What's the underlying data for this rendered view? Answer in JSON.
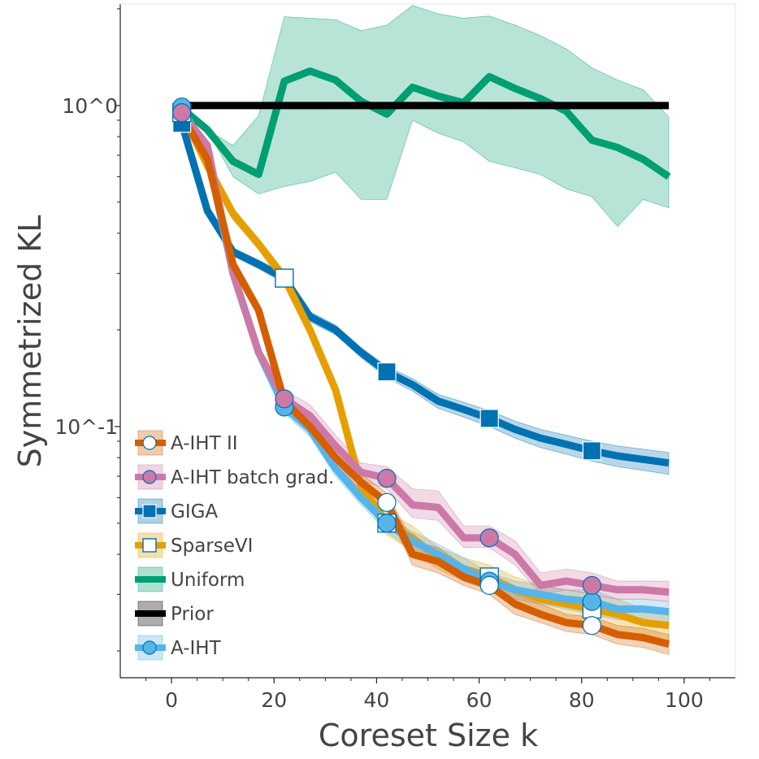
{
  "chart_data": {
    "type": "line",
    "xlabel": "Coreset Size k",
    "ylabel": "Symmetrized KL",
    "yscale": "log",
    "xlim": [
      -10,
      110
    ],
    "ylim": [
      0.0165,
      2.07
    ],
    "x_ticks": [
      0,
      20,
      40,
      60,
      80,
      100
    ],
    "y_ticks": [
      {
        "value": 1.0,
        "label": "10^0"
      },
      {
        "value": 0.1,
        "label": "10^-1"
      }
    ],
    "legend_location": "lower-left",
    "series": [
      {
        "name": "Uniform",
        "color": "#009E73",
        "marker": "none",
        "x": [
          2,
          7,
          12,
          17,
          22,
          27,
          32,
          37,
          42,
          47,
          52,
          57,
          62,
          67,
          72,
          77,
          82,
          87,
          92,
          97
        ],
        "y": [
          0.98,
          0.84,
          0.67,
          0.61,
          1.19,
          1.28,
          1.2,
          1.03,
          0.94,
          1.14,
          1.07,
          1.02,
          1.23,
          1.13,
          1.05,
          0.96,
          0.78,
          0.74,
          0.68,
          0.6
        ],
        "lower": [
          0.98,
          0.84,
          0.6,
          0.53,
          0.56,
          0.58,
          0.62,
          0.51,
          0.51,
          0.9,
          0.82,
          0.77,
          0.67,
          0.64,
          0.61,
          0.55,
          0.52,
          0.42,
          0.51,
          0.48
        ],
        "upper": [
          0.98,
          0.84,
          0.75,
          0.93,
          1.89,
          1.87,
          1.85,
          1.71,
          1.78,
          2.05,
          1.93,
          1.87,
          1.9,
          1.78,
          1.65,
          1.5,
          1.31,
          1.2,
          1.12,
          0.92
        ],
        "marker_x": []
      },
      {
        "name": "Prior",
        "color": "#000000",
        "marker": "none",
        "x": [
          2,
          97
        ],
        "y": [
          1.0,
          1.0
        ],
        "lower": [],
        "upper": [],
        "marker_x": []
      },
      {
        "name": "GIGA",
        "color": "#0072B2",
        "marker": "square",
        "x": [
          2,
          7,
          12,
          17,
          22,
          27,
          32,
          37,
          42,
          47,
          52,
          57,
          62,
          67,
          72,
          77,
          82,
          87,
          92,
          97
        ],
        "y": [
          0.88,
          0.47,
          0.35,
          0.32,
          0.29,
          0.22,
          0.2,
          0.17,
          0.148,
          0.135,
          0.12,
          0.113,
          0.106,
          0.098,
          0.092,
          0.088,
          0.084,
          0.081,
          0.079,
          0.077
        ],
        "lower": [
          0.86,
          0.46,
          0.34,
          0.31,
          0.28,
          0.212,
          0.193,
          0.164,
          0.142,
          0.129,
          0.114,
          0.107,
          0.1,
          0.092,
          0.086,
          0.082,
          0.078,
          0.075,
          0.073,
          0.071
        ],
        "upper": [
          0.9,
          0.48,
          0.36,
          0.33,
          0.3,
          0.228,
          0.207,
          0.176,
          0.154,
          0.141,
          0.126,
          0.119,
          0.112,
          0.104,
          0.098,
          0.094,
          0.09,
          0.087,
          0.085,
          0.083
        ],
        "marker_x": [
          2,
          42,
          62,
          82
        ]
      },
      {
        "name": "SparseVI",
        "color": "#E69F00",
        "marker": "open-square",
        "x": [
          2,
          7,
          12,
          17,
          22,
          27,
          32,
          37,
          42,
          47,
          52,
          57,
          62,
          67,
          72,
          77,
          82,
          87,
          92,
          97
        ],
        "y": [
          0.95,
          0.65,
          0.46,
          0.37,
          0.29,
          0.2,
          0.13,
          0.065,
          0.05,
          0.045,
          0.039,
          0.036,
          0.034,
          0.031,
          0.029,
          0.028,
          0.027,
          0.026,
          0.0245,
          0.024
        ],
        "lower": [
          0.94,
          0.64,
          0.44,
          0.355,
          0.275,
          0.19,
          0.123,
          0.061,
          0.046,
          0.041,
          0.036,
          0.033,
          0.031,
          0.028,
          0.026,
          0.025,
          0.024,
          0.023,
          0.022,
          0.021
        ],
        "upper": [
          0.96,
          0.66,
          0.48,
          0.385,
          0.305,
          0.21,
          0.137,
          0.069,
          0.054,
          0.049,
          0.042,
          0.039,
          0.037,
          0.034,
          0.032,
          0.031,
          0.03,
          0.029,
          0.027,
          0.027
        ],
        "marker_x": [
          2,
          22,
          42,
          62,
          82
        ]
      },
      {
        "name": "A-IHT",
        "color": "#56B4E9",
        "marker": "circle",
        "x": [
          2,
          7,
          12,
          17,
          22,
          27,
          32,
          37,
          42,
          47,
          52,
          57,
          62,
          67,
          72,
          77,
          82,
          87,
          92,
          97
        ],
        "y": [
          0.99,
          0.7,
          0.3,
          0.17,
          0.115,
          0.098,
          0.074,
          0.06,
          0.05,
          0.044,
          0.04,
          0.036,
          0.033,
          0.031,
          0.03,
          0.029,
          0.0285,
          0.027,
          0.027,
          0.0265
        ],
        "lower": [
          0.98,
          0.68,
          0.29,
          0.164,
          0.11,
          0.093,
          0.07,
          0.057,
          0.047,
          0.041,
          0.037,
          0.033,
          0.031,
          0.029,
          0.028,
          0.027,
          0.026,
          0.025,
          0.025,
          0.0245
        ],
        "upper": [
          1.0,
          0.72,
          0.31,
          0.176,
          0.12,
          0.103,
          0.078,
          0.063,
          0.053,
          0.047,
          0.043,
          0.039,
          0.035,
          0.033,
          0.032,
          0.031,
          0.031,
          0.029,
          0.029,
          0.0285
        ],
        "marker_x": [
          2,
          22,
          42,
          62,
          82
        ]
      },
      {
        "name": "A-IHT batch grad.",
        "color": "#CC79A7",
        "marker": "circle",
        "x": [
          2,
          7,
          12,
          17,
          22,
          27,
          32,
          37,
          42,
          47,
          52,
          57,
          62,
          67,
          72,
          77,
          82,
          87,
          92,
          97
        ],
        "y": [
          0.95,
          0.75,
          0.3,
          0.17,
          0.122,
          0.108,
          0.087,
          0.072,
          0.069,
          0.057,
          0.056,
          0.045,
          0.045,
          0.04,
          0.032,
          0.033,
          0.032,
          0.031,
          0.031,
          0.0305
        ],
        "lower": [
          0.94,
          0.73,
          0.29,
          0.164,
          0.116,
          0.102,
          0.082,
          0.068,
          0.064,
          0.052,
          0.051,
          0.042,
          0.042,
          0.037,
          0.03,
          0.031,
          0.03,
          0.029,
          0.029,
          0.0285
        ],
        "upper": [
          0.96,
          0.77,
          0.31,
          0.176,
          0.13,
          0.117,
          0.094,
          0.077,
          0.075,
          0.064,
          0.063,
          0.049,
          0.049,
          0.044,
          0.035,
          0.036,
          0.035,
          0.033,
          0.033,
          0.033
        ],
        "marker_x": [
          2,
          22,
          42,
          62,
          82
        ]
      },
      {
        "name": "A-IHT II",
        "color": "#D55E00",
        "marker": "open-circle",
        "x": [
          2,
          7,
          12,
          17,
          22,
          27,
          32,
          37,
          42,
          47,
          52,
          57,
          62,
          67,
          72,
          77,
          82,
          87,
          92,
          97
        ],
        "y": [
          0.93,
          0.68,
          0.32,
          0.23,
          0.12,
          0.1,
          0.08,
          0.067,
          0.058,
          0.04,
          0.038,
          0.034,
          0.032,
          0.028,
          0.026,
          0.0245,
          0.024,
          0.0225,
          0.022,
          0.021
        ],
        "lower": [
          0.92,
          0.66,
          0.31,
          0.22,
          0.114,
          0.095,
          0.076,
          0.063,
          0.055,
          0.037,
          0.035,
          0.032,
          0.03,
          0.026,
          0.0245,
          0.023,
          0.0225,
          0.021,
          0.0205,
          0.0195
        ],
        "upper": [
          0.94,
          0.7,
          0.33,
          0.24,
          0.126,
          0.105,
          0.085,
          0.071,
          0.062,
          0.044,
          0.042,
          0.037,
          0.035,
          0.03,
          0.028,
          0.026,
          0.0255,
          0.024,
          0.0235,
          0.0225
        ],
        "marker_x": [
          42,
          62,
          82
        ]
      }
    ],
    "legend_order": [
      "A-IHT II",
      "A-IHT batch grad.",
      "GIGA",
      "SparseVI",
      "Uniform",
      "Prior",
      "A-IHT"
    ]
  }
}
